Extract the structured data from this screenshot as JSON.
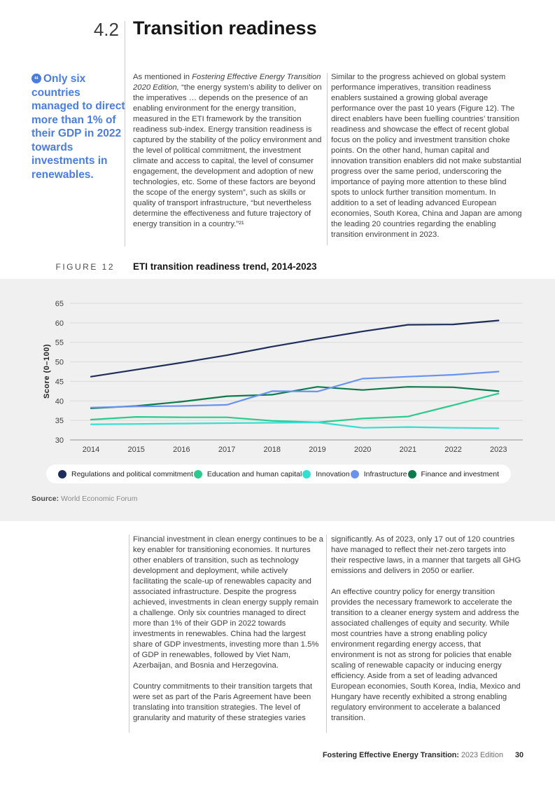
{
  "page": {
    "section_number": "4.2",
    "title": "Transition readiness"
  },
  "callout": {
    "icon": "quote-icon",
    "text": "Only six countries managed to direct more than 1% of their GDP in 2022 towards investments in renewables.",
    "color": "#4a7de0"
  },
  "intro": {
    "col1": {
      "lead": "As mentioned in ",
      "italic": "Fostering Effective Energy Transition 2020 Edition,",
      "rest": " “the energy system’s ability to deliver on the imperatives … depends on the presence of an enabling environment for the energy transition, measured in the ETI framework by the transition readiness sub-index. Energy transition readiness is captured by the stability of the policy environment and the level of political commitment, the investment climate and access to capital, the level of consumer engagement, the development and adoption of new technologies, etc. Some of these factors are beyond the scope of the energy system”, such as skills or quality of transport infrastructure, “but nevertheless determine the effectiveness and future trajectory of energy transition in a country.”²¹"
    },
    "col2": "Similar to the progress achieved on global system performance imperatives, transition readiness enablers sustained a growing global average performance over the past 10 years (Figure 12). The direct enablers have been fuelling countries’ transition readiness and showcase the effect of recent global focus on the policy and investment transition choke points. On the other hand, human capital and innovation transition enablers did not make substantial progress over the same period, underscoring the importance of paying more attention to these blind spots to unlock further transition momentum. In addition to a set of leading advanced European economies, South Korea, China and Japan are among the leading 20 countries regarding the enabling transition environment in 2023."
  },
  "figure": {
    "label": "FIGURE 12",
    "title": "ETI transition readiness trend, 2014-2023",
    "source_label": "Source:",
    "source": "World Economic Forum"
  },
  "chart_data": {
    "type": "line",
    "title": "ETI transition readiness trend, 2014-2023",
    "ylabel": "Score (0–100)",
    "x": [
      2014,
      2015,
      2016,
      2017,
      2018,
      2019,
      2020,
      2021,
      2022,
      2023
    ],
    "yticks": [
      30,
      35,
      40,
      45,
      50,
      55,
      60,
      65
    ],
    "ylim": [
      30,
      65
    ],
    "grid": "horizontal",
    "legend_position": "bottom",
    "background": "#eff0ef",
    "series": [
      {
        "name": "Regulations and political commitment",
        "color": "#1e2d5c",
        "values": [
          46.2,
          48.0,
          49.8,
          51.7,
          53.9,
          55.9,
          57.8,
          59.5,
          59.6,
          60.6
        ]
      },
      {
        "name": "Education and human capital",
        "color": "#2bca8e",
        "values": [
          35.2,
          35.9,
          35.8,
          35.8,
          34.9,
          34.5,
          35.5,
          36.0,
          38.9,
          41.9
        ]
      },
      {
        "name": "Innovation",
        "color": "#33e0cf",
        "values": [
          34.0,
          34.1,
          34.2,
          34.3,
          34.4,
          34.5,
          33.1,
          33.3,
          33.1,
          33.0
        ]
      },
      {
        "name": "Infrastructure",
        "color": "#6a93f0",
        "values": [
          38.3,
          38.6,
          38.7,
          39.0,
          42.5,
          42.4,
          45.7,
          46.2,
          46.7,
          47.5
        ]
      },
      {
        "name": "Finance and investment",
        "color": "#0d7a4e",
        "values": [
          38.1,
          38.7,
          39.8,
          41.2,
          41.6,
          43.6,
          42.8,
          43.6,
          43.5,
          42.5
        ]
      }
    ]
  },
  "body": {
    "col1_p1": "Financial investment in clean energy continues to be a key enabler for transitioning economies. It nurtures other enablers of transition, such as technology development and deployment, while actively facilitating the scale-up of renewables capacity and associated infrastructure. Despite the progress achieved, investments in clean energy supply remain a challenge. Only six countries managed to direct more than 1% of their GDP in 2022 towards investments in renewables. China had the largest share of GDP investments, investing more than 1.5% of GDP in renewables, followed by Viet Nam, Azerbaijan, and Bosnia and Herzegovina.",
    "col1_p2": "Country commitments to their transition targets that were set as part of the Paris Agreement have been translating into transition strategies. The level of granularity and maturity of these strategies varies",
    "col2_p1": "significantly. As of 2023, only 17 out of 120 countries have managed to reflect their net-zero targets into their respective laws, in a manner that targets all GHG emissions and delivers in 2050 or earlier.",
    "col2_p2": "An effective country policy for energy transition provides the necessary framework to accelerate the transition to a cleaner energy system and address the associated challenges of equity and security. While most countries have a strong enabling policy environment regarding energy access, that environment is not as strong for policies that enable scaling of renewable capacity or inducing energy efficiency. Aside from a set of leading advanced European economies, South Korea, India, Mexico and Hungary have recently exhibited a strong enabling regulatory environment to accelerate a balanced transition."
  },
  "footer": {
    "book_title": "Fostering Effective Energy Transition:",
    "edition": "2023 Edition",
    "page_number": "30"
  }
}
